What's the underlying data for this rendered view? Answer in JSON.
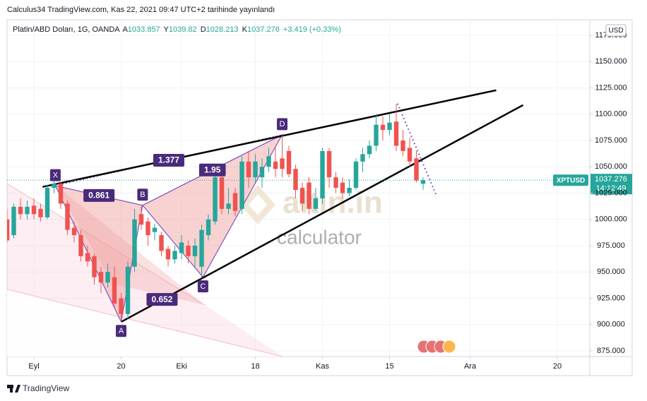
{
  "chart_data": {
    "type": "candlestick",
    "published": "Calculus34 TradingView.com, Kas 22, 2021 09:47 UTC+2 tarihinde yayınlandı",
    "symbol": "Platin/ABD Doları, 1G, OANDA",
    "ohlc_labels": [
      "A",
      "Y",
      "D",
      "K"
    ],
    "change": "+3.419 (+0.33%)",
    "currency": "USD",
    "ticker": "XPTUSD",
    "countdown": "14:12:49",
    "brand": "TradingView",
    "watermark": [
      "altin.in",
      "calculator"
    ],
    "up_color": "#26a69a",
    "down_color": "#ef5350",
    "grid": true,
    "ohlc": [
      [
        1000,
        1010,
        978,
        980
      ],
      [
        985,
        1015,
        982,
        1012
      ],
      [
        1012,
        1020,
        1000,
        1005
      ],
      [
        1005,
        1018,
        1000,
        1012
      ],
      [
        1013,
        1020,
        1000,
        1005
      ],
      [
        1010,
        1015,
        998,
        1002
      ],
      [
        1002,
        1033,
        1000,
        1030
      ],
      [
        1030,
        1036,
        1025,
        1034
      ],
      [
        1034,
        1036,
        1010,
        1015
      ],
      [
        1015,
        1018,
        985,
        990
      ],
      [
        992,
        998,
        978,
        985
      ],
      [
        985,
        990,
        960,
        965
      ],
      [
        968,
        975,
        955,
        960
      ],
      [
        965,
        968,
        938,
        945
      ],
      [
        950,
        955,
        930,
        940
      ],
      [
        940,
        958,
        935,
        950
      ],
      [
        945,
        955,
        915,
        920
      ],
      [
        925,
        930,
        903,
        910
      ],
      [
        910,
        960,
        905,
        955
      ],
      [
        955,
        1010,
        950,
        1000
      ],
      [
        1005,
        1013,
        990,
        995
      ],
      [
        998,
        1002,
        975,
        985
      ],
      [
        988,
        996,
        980,
        992
      ],
      [
        985,
        988,
        965,
        970
      ],
      [
        972,
        975,
        955,
        962
      ],
      [
        962,
        975,
        958,
        970
      ],
      [
        968,
        985,
        962,
        978
      ],
      [
        975,
        980,
        958,
        965
      ],
      [
        965,
        982,
        955,
        975
      ],
      [
        955,
        995,
        945,
        990
      ],
      [
        985,
        1005,
        980,
        1000
      ],
      [
        998,
        1045,
        995,
        1040
      ],
      [
        1040,
        1045,
        1005,
        1010
      ],
      [
        1010,
        1030,
        1005,
        1015
      ],
      [
        1025,
        1030,
        1003,
        1008
      ],
      [
        1010,
        1060,
        1005,
        1055
      ],
      [
        1055,
        1065,
        1030,
        1040
      ],
      [
        1040,
        1062,
        1035,
        1055
      ],
      [
        1040,
        1058,
        1030,
        1050
      ],
      [
        1050,
        1068,
        1045,
        1060
      ],
      [
        1055,
        1070,
        1040,
        1048
      ],
      [
        1058,
        1080,
        1040,
        1048
      ],
      [
        1065,
        1070,
        1040,
        1043
      ],
      [
        1048,
        1052,
        1020,
        1028
      ],
      [
        1030,
        1035,
        1008,
        1015
      ],
      [
        1035,
        1040,
        1005,
        1010
      ],
      [
        1010,
        1030,
        1008,
        1020
      ],
      [
        1020,
        1068,
        1015,
        1065
      ],
      [
        1065,
        1068,
        1030,
        1040
      ],
      [
        1040,
        1045,
        1025,
        1030
      ],
      [
        1035,
        1040,
        1020,
        1025
      ],
      [
        1025,
        1038,
        1022,
        1030
      ],
      [
        1030,
        1058,
        1028,
        1055
      ],
      [
        1055,
        1068,
        1045,
        1062
      ],
      [
        1062,
        1075,
        1058,
        1070
      ],
      [
        1070,
        1100,
        1065,
        1090
      ],
      [
        1090,
        1098,
        1075,
        1085
      ],
      [
        1085,
        1100,
        1080,
        1092
      ],
      [
        1093,
        1110,
        1065,
        1070
      ],
      [
        1075,
        1085,
        1060,
        1065
      ],
      [
        1068,
        1078,
        1050,
        1055
      ],
      [
        1058,
        1065,
        1035,
        1037
      ],
      [
        1033.857,
        1039.82,
        1028.213,
        1037.276
      ]
    ],
    "xlim": [
      0,
      86.84
    ],
    "xticks": [
      {
        "value": 4,
        "label": "Eyl"
      },
      {
        "value": 17,
        "label": "20"
      },
      {
        "value": 26,
        "label": "Eki"
      },
      {
        "value": 37,
        "label": "18"
      },
      {
        "value": 47,
        "label": "Kas"
      },
      {
        "value": 57,
        "label": "15"
      },
      {
        "value": 69,
        "label": "Ara"
      },
      {
        "value": 82,
        "label": "20"
      }
    ],
    "ylim": [
      869.6,
      1189.8
    ],
    "yticks": [
      {
        "value": 875,
        "label": "875.000"
      },
      {
        "value": 900,
        "label": "900.000"
      },
      {
        "value": 925,
        "label": "925.000"
      },
      {
        "value": 950,
        "label": "950.000"
      },
      {
        "value": 975,
        "label": "975.000"
      },
      {
        "value": 1000,
        "label": "1000.000"
      },
      {
        "value": 1025,
        "label": "1025.000"
      },
      {
        "value": 1050,
        "label": "1050.000"
      },
      {
        "value": 1075,
        "label": "1075.000"
      },
      {
        "value": 1100,
        "label": "1100.000"
      },
      {
        "value": 1125,
        "label": "1125.000"
      },
      {
        "value": 1150,
        "label": "1150.000"
      },
      {
        "value": 1175,
        "label": "1175.000"
      }
    ],
    "pattern": {
      "color": "#7e57c2",
      "points": [
        {
          "label": "X",
          "x": 7.2,
          "y": 1032
        },
        {
          "label": "A",
          "x": 17,
          "y": 902.7
        },
        {
          "label": "B",
          "x": 20.2,
          "y": 1013.4
        },
        {
          "label": "C",
          "x": 29.2,
          "y": 945
        },
        {
          "label": "D",
          "x": 41,
          "y": 1080.5
        }
      ],
      "ratios": [
        "0.861",
        "0.652",
        "1.95",
        "1.377"
      ]
    },
    "trendlines": [
      {
        "x": [
          5.3,
          72.9
        ],
        "y": [
          1030.9,
          1122.8
        ],
        "color": "#000000",
        "dotted": false
      },
      {
        "x": [
          17.05,
          76.9
        ],
        "y": [
          902.7,
          1108.7
        ],
        "color": "#000000",
        "dotted": false
      },
      {
        "x": [
          58.2,
          63.9
        ],
        "y": [
          1110,
          1024
        ],
        "color": "#5e35b1",
        "dotted": true
      }
    ]
  }
}
